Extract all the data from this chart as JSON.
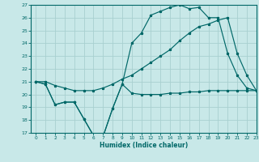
{
  "xlabel": "Humidex (Indice chaleur)",
  "bg_color": "#c8e8e8",
  "grid_color": "#a8d0d0",
  "line_color": "#006868",
  "xlim": [
    -0.5,
    23
  ],
  "ylim": [
    17,
    27
  ],
  "xticks": [
    0,
    1,
    2,
    3,
    4,
    5,
    6,
    7,
    8,
    9,
    10,
    11,
    12,
    13,
    14,
    15,
    16,
    17,
    18,
    19,
    20,
    21,
    22,
    23
  ],
  "yticks": [
    17,
    18,
    19,
    20,
    21,
    22,
    23,
    24,
    25,
    26,
    27
  ],
  "line1_x": [
    0,
    1,
    2,
    3,
    4,
    5,
    6,
    7,
    8,
    9,
    10,
    11,
    12,
    13,
    14,
    15,
    16,
    17,
    18,
    19,
    20,
    21,
    22,
    23
  ],
  "line1_y": [
    21.0,
    20.8,
    19.2,
    19.4,
    19.4,
    18.1,
    16.8,
    16.7,
    18.9,
    20.8,
    20.1,
    20.0,
    20.0,
    20.0,
    20.1,
    20.1,
    20.2,
    20.2,
    20.3,
    20.3,
    20.3,
    20.3,
    20.3,
    20.3
  ],
  "line2_x": [
    0,
    1,
    2,
    3,
    4,
    5,
    6,
    7,
    8,
    9,
    10,
    11,
    12,
    13,
    14,
    15,
    16,
    17,
    18,
    19,
    20,
    21,
    22,
    23
  ],
  "line2_y": [
    21.0,
    20.8,
    19.2,
    19.4,
    19.4,
    18.1,
    16.8,
    16.7,
    18.9,
    20.8,
    24.0,
    24.8,
    26.2,
    26.5,
    26.8,
    27.0,
    26.7,
    26.8,
    26.0,
    26.0,
    23.2,
    21.5,
    20.5,
    20.3
  ],
  "line3_x": [
    0,
    1,
    2,
    3,
    4,
    5,
    6,
    7,
    8,
    9,
    10,
    11,
    12,
    13,
    14,
    15,
    16,
    17,
    18,
    19,
    20,
    21,
    22,
    23
  ],
  "line3_y": [
    21.0,
    21.0,
    20.7,
    20.5,
    20.3,
    20.3,
    20.3,
    20.5,
    20.8,
    21.2,
    21.5,
    22.0,
    22.5,
    23.0,
    23.5,
    24.2,
    24.8,
    25.3,
    25.5,
    25.8,
    26.0,
    23.2,
    21.5,
    20.3
  ]
}
